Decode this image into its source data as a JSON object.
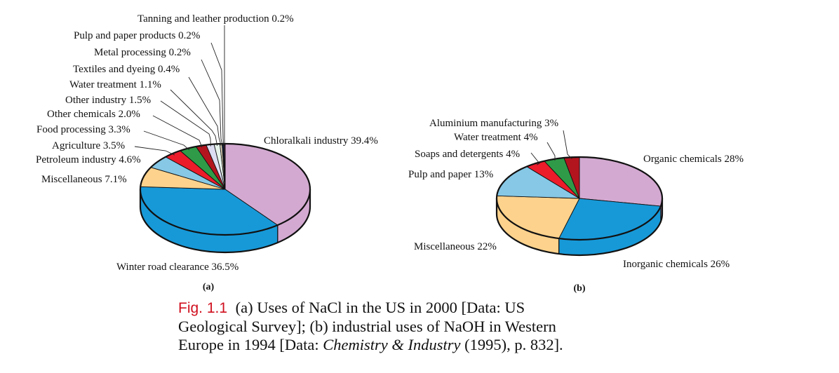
{
  "chart_data": [
    {
      "type": "pie",
      "style": "3d",
      "panel_label": "(a)",
      "title": "Uses of NaCl in the US in 2000",
      "slices": [
        {
          "label": "Chloralkali industry",
          "value": 39.4,
          "display": "Chloralkali industry 39.4%",
          "color": "#d3a9d1"
        },
        {
          "label": "Winter road clearance",
          "value": 36.5,
          "display": "Winter road clearance 36.5%",
          "color": "#1799d8"
        },
        {
          "label": "Miscellaneous",
          "value": 7.1,
          "display": "Miscellaneous 7.1%",
          "color": "#fdd28c"
        },
        {
          "label": "Petroleum industry",
          "value": 4.6,
          "display": "Petroleum industry 4.6%",
          "color": "#86c8e6"
        },
        {
          "label": "Agriculture",
          "value": 3.5,
          "display": "Agriculture 3.5%",
          "color": "#ec1c2b"
        },
        {
          "label": "Food processing",
          "value": 3.3,
          "display": "Food processing 3.3%",
          "color": "#2f9b48"
        },
        {
          "label": "Other chemicals",
          "value": 2.0,
          "display": "Other chemicals 2.0%",
          "color": "#b3151f"
        },
        {
          "label": "Other industry",
          "value": 1.5,
          "display": "Other industry 1.5%",
          "color": "#dcdcf2"
        },
        {
          "label": "Water treatment",
          "value": 1.1,
          "display": "Water treatment 1.1%",
          "color": "#e6f4ec"
        },
        {
          "label": "Textiles and dyeing",
          "value": 0.4,
          "display": "Textiles and dyeing 0.4%",
          "color": "#f2e6c8"
        },
        {
          "label": "Metal processing",
          "value": 0.2,
          "display": "Metal processing 0.2%",
          "color": "#3a5a9a"
        },
        {
          "label": "Pulp and paper products",
          "value": 0.2,
          "display": "Pulp and paper products 0.2%",
          "color": "#1c3f7a"
        },
        {
          "label": "Tanning and leather production",
          "value": 0.2,
          "display": "Tanning and leather production 0.2%",
          "color": "#7a2c5a"
        }
      ]
    },
    {
      "type": "pie",
      "style": "3d",
      "panel_label": "(b)",
      "title": "Industrial uses of NaOH in Western Europe in 1994",
      "slices": [
        {
          "label": "Organic chemicals",
          "value": 28,
          "display": "Organic chemicals 28%",
          "color": "#d3a9d1"
        },
        {
          "label": "Inorganic chemicals",
          "value": 26,
          "display": "Inorganic chemicals 26%",
          "color": "#1799d8"
        },
        {
          "label": "Miscellaneous",
          "value": 22,
          "display": "Miscellaneous 22%",
          "color": "#fdd28c"
        },
        {
          "label": "Pulp and paper",
          "value": 13,
          "display": "Pulp and paper 13%",
          "color": "#86c8e6"
        },
        {
          "label": "Soaps and detergents",
          "value": 4,
          "display": "Soaps and detergents 4%",
          "color": "#ec1c2b"
        },
        {
          "label": "Water treatment",
          "value": 4,
          "display": "Water treatment 4%",
          "color": "#2f9b48"
        },
        {
          "label": "Aluminium manufacturing",
          "value": 3,
          "display": "Aluminium manufacturing 3%",
          "color": "#b3151f"
        }
      ]
    }
  ],
  "caption": {
    "figure_number": "Fig. 1.1",
    "line1": "(a) Uses of NaCl in the US in 2000 [Data: US",
    "line2": "Geological Survey]; (b) industrial uses of NaOH in Western",
    "line3_a": "Europe in 1994 [Data: ",
    "line3_italic": "Chemistry & Industry",
    "line3_b": " (1995), p. 832]."
  }
}
